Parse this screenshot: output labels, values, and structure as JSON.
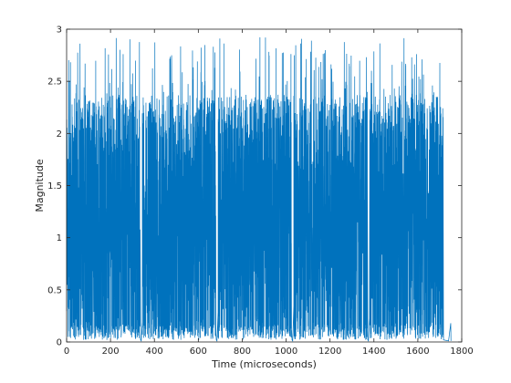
{
  "chart_data": {
    "type": "line",
    "xlabel": "Time (microseconds)",
    "ylabel": "Magnitude",
    "xlim": [
      0,
      1800
    ],
    "ylim": [
      0,
      3
    ],
    "x_ticks": [
      0,
      200,
      400,
      600,
      800,
      1000,
      1200,
      1400,
      1600,
      1800
    ],
    "x_tick_labels": [
      "0",
      "200",
      "400",
      "600",
      "800",
      "1000",
      "1200",
      "1400",
      "1600",
      "1800"
    ],
    "y_ticks": [
      0,
      0.5,
      1,
      1.5,
      2,
      2.5,
      3
    ],
    "y_tick_labels": [
      "0",
      "0.5",
      "1",
      "1.5",
      "2",
      "2.5",
      "3"
    ],
    "grid": false,
    "series": [
      {
        "color": "#0072BD",
        "description_note": "",
        "bursts": [
          {
            "x_start": 0,
            "x_end": 335
          },
          {
            "x_start": 345,
            "x_end": 680
          },
          {
            "x_start": 690,
            "x_end": 1025
          },
          {
            "x_start": 1035,
            "x_end": 1370
          },
          {
            "x_start": 1380,
            "x_end": 1715
          }
        ],
        "burst_peak_max": 2.93,
        "burst_floor": 0.02,
        "trailing_spike": {
          "x": 1750,
          "y": 0.18
        }
      }
    ]
  }
}
